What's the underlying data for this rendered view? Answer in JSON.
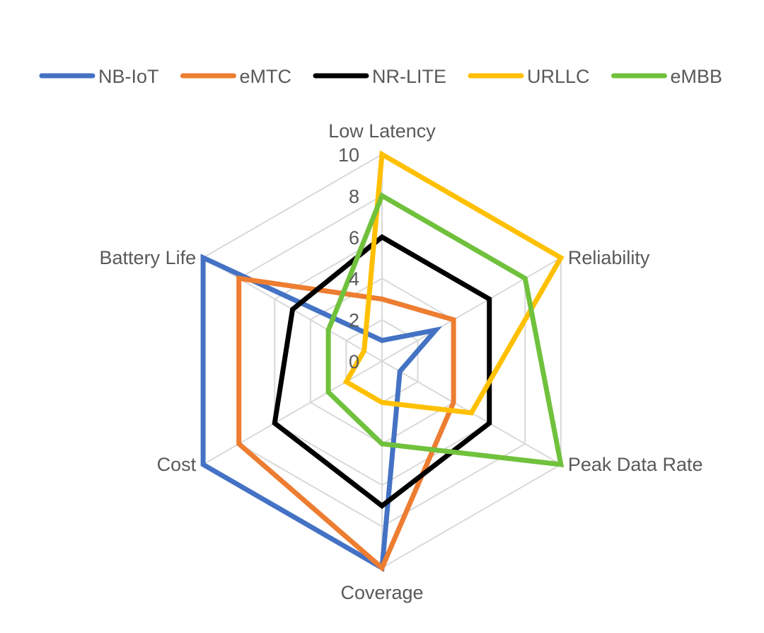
{
  "chart_data": {
    "type": "radar",
    "axes": [
      "Low Latency",
      "Reliability",
      "Peak Data Rate",
      "Coverage",
      "Cost",
      "Battery Life"
    ],
    "r_ticks": [
      "0",
      "2",
      "4",
      "6",
      "8",
      "10"
    ],
    "r_range": [
      0,
      10
    ],
    "grid": true,
    "legend_position": "top",
    "series": [
      {
        "name": "NB-IoT",
        "color": "#4472C4",
        "values": [
          1,
          3,
          1,
          10,
          10,
          10
        ]
      },
      {
        "name": "eMTC",
        "color": "#ED7D31",
        "values": [
          3,
          4,
          4,
          10,
          8,
          8
        ]
      },
      {
        "name": "NR-LITE",
        "color": "#000000",
        "values": [
          6,
          6,
          6,
          7,
          6,
          5
        ]
      },
      {
        "name": "URLLC",
        "color": "#FFC000",
        "values": [
          10,
          10,
          5,
          2,
          2,
          1
        ]
      },
      {
        "name": "eMBB",
        "color": "#70C13C",
        "values": [
          8,
          8,
          10,
          4,
          3,
          3
        ]
      }
    ]
  }
}
